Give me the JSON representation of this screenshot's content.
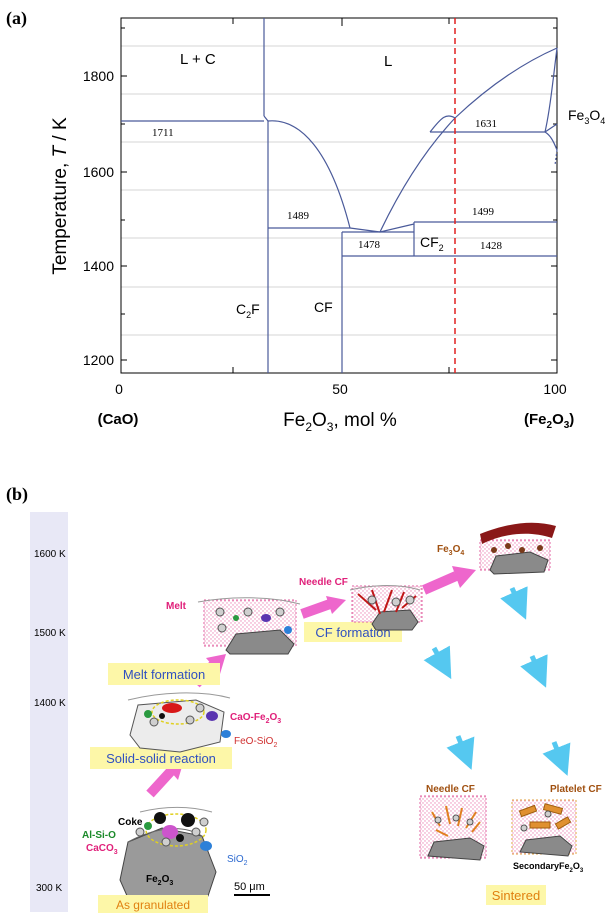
{
  "panel_a": {
    "label": "(a)",
    "y_title": "Temperature, ",
    "y_title_italic": "T",
    "y_title_unit": " / K",
    "y_ticks": [
      "1800",
      "1600",
      "1400",
      "1200"
    ],
    "x_ticks": [
      "0",
      "50",
      "100"
    ],
    "x_end_left": "(CaO)",
    "x_end_right": "(Fe",
    "x_end_right_sub": "2",
    "x_end_right_tail": "O",
    "x_end_right_sub2": "3",
    "x_end_right_close": ")",
    "x_title_a": "Fe",
    "x_title_sub1": "2",
    "x_title_b": "O",
    "x_title_sub2": "3",
    "x_title_c": ", mol %",
    "region_lc": "L + C",
    "region_l": "L",
    "region_fe3o4_a": "Fe",
    "region_fe3o4_sub1": "3",
    "region_fe3o4_b": "O",
    "region_fe3o4_sub2": "4",
    "region_c2f_a": "C",
    "region_c2f_sub": "2",
    "region_c2f_b": "F",
    "region_cf": "CF",
    "region_cf2_a": "CF",
    "region_cf2_sub": "2",
    "t_1711": "1711",
    "t_1631": "1631",
    "t_1489": "1489",
    "t_1499": "1499",
    "t_1478": "1478",
    "t_1428": "1428",
    "colors": {
      "phase_line": "#4a5a9a",
      "grid": "#c8c8c8",
      "dashed_line": "#e02020"
    }
  },
  "panel_b": {
    "label": "(b)",
    "temps": [
      "1600 K",
      "1500 K",
      "1400 K",
      "300 K"
    ],
    "step_granulated": "As granulated",
    "step_solid_reaction": "Solid-solid reaction",
    "step_melt_formation": "Melt formation",
    "step_cf_formation": "CF formation",
    "step_sintered": "Sintered",
    "lbl_coke": "Coke",
    "lbl_alsio": "Al-Si-O",
    "lbl_caco3_a": "CaCO",
    "lbl_caco3_sub": "3",
    "lbl_sio2_a": "SiO",
    "lbl_sio2_sub": "2",
    "lbl_fe2o3_a": "Fe",
    "lbl_fe2o3_sub1": "2",
    "lbl_fe2o3_b": "O",
    "lbl_fe2o3_sub2": "3",
    "lbl_cao_fe2o3_a": "CaO-Fe",
    "lbl_cao_fe2o3_sub1": "2",
    "lbl_cao_fe2o3_b": "O",
    "lbl_cao_fe2o3_sub2": "3",
    "lbl_feo_sio2_a": "FeO-SiO",
    "lbl_feo_sio2_sub": "2",
    "lbl_melt": "Melt",
    "lbl_needle_cf": "Needle CF",
    "lbl_fe3o4_a": "Fe",
    "lbl_fe3o4_sub1": "3",
    "lbl_fe3o4_b": "O",
    "lbl_fe3o4_sub2": "4",
    "lbl_needle_cf2": "Needle CF",
    "lbl_platelet_cf": "Platelet CF",
    "lbl_secondary_a": "SecondaryFe",
    "lbl_secondary_sub1": "2",
    "lbl_secondary_b": "O",
    "lbl_secondary_sub2": "3",
    "scale_a": "50 ",
    "scale_b": "μm",
    "colors": {
      "arrow_pink": "#ee66cc",
      "arrow_blue": "#55c8f0",
      "label_box": "#fdf7a8",
      "temp_bar": "#e8e8f6"
    }
  }
}
